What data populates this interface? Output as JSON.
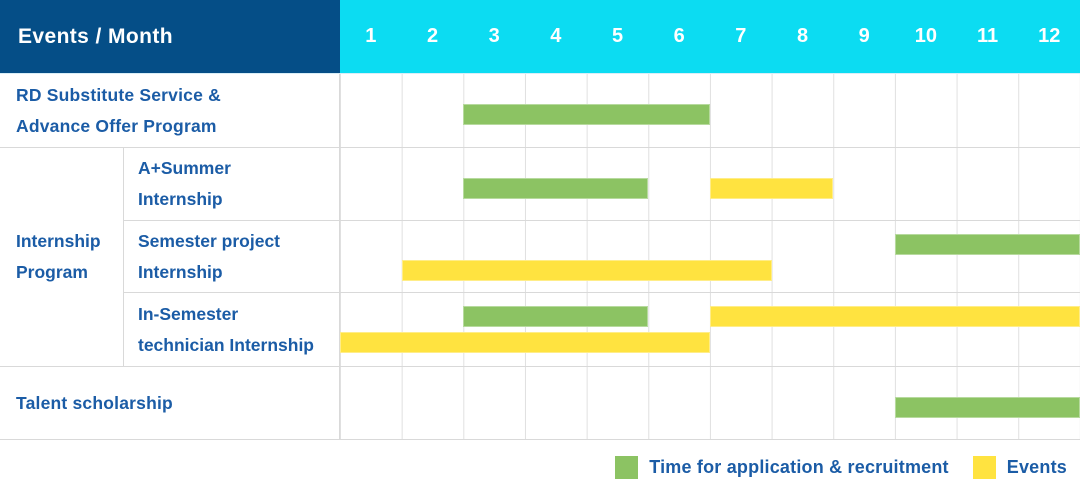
{
  "header": {
    "corner_label": "Events / Month",
    "months": [
      "1",
      "2",
      "3",
      "4",
      "5",
      "6",
      "7",
      "8",
      "9",
      "10",
      "11",
      "12"
    ]
  },
  "labels": {
    "row1_line1": "RD Substitute Service &",
    "row1_line2": "Advance Offer Program",
    "group_line1": "Internship",
    "group_line2": "Program",
    "sub1_line1": "A+Summer",
    "sub1_line2": "Internship",
    "sub2_line1": "Semester project",
    "sub2_line2": "Internship",
    "sub3_line1": "In-Semester",
    "sub3_line2": "technician Internship",
    "row5": "Talent scholarship"
  },
  "legend": {
    "recruitment_label": "Time for application & recruitment",
    "events_label": "Events"
  },
  "colors": {
    "navy": "#054e87",
    "cyan": "#0cdcf2",
    "green": "#8cc363",
    "yellow": "#ffe340",
    "label_blue": "#1b5ca6"
  },
  "chart_data": {
    "type": "bar",
    "subtype": "gantt",
    "title": "Events / Month",
    "x_axis": {
      "label": "Month",
      "ticks": [
        1,
        2,
        3,
        4,
        5,
        6,
        7,
        8,
        9,
        10,
        11,
        12
      ],
      "range": [
        1,
        12
      ]
    },
    "grid": true,
    "legend_position": "bottom-right",
    "series_colors": {
      "Time for application & recruitment": "#8cc363",
      "Events": "#ffe340"
    },
    "rows": [
      {
        "label": "RD Substitute Service & Advance Offer Program",
        "bars": [
          {
            "series": "Time for application & recruitment",
            "start_month": 3,
            "end_month": 6,
            "track": "single"
          }
        ]
      },
      {
        "group": "Internship Program",
        "label": "A+Summer Internship",
        "bars": [
          {
            "series": "Time for application & recruitment",
            "start_month": 3,
            "end_month": 5,
            "track": "single"
          },
          {
            "series": "Events",
            "start_month": 7,
            "end_month": 8,
            "track": "single"
          }
        ]
      },
      {
        "group": "Internship Program",
        "label": "Semester project Internship",
        "bars": [
          {
            "series": "Time for application & recruitment",
            "start_month": 10,
            "end_month": 12,
            "track": "upper"
          },
          {
            "series": "Events",
            "start_month": 2,
            "end_month": 7,
            "track": "lower"
          }
        ]
      },
      {
        "group": "Internship Program",
        "label": "In-Semester technician Internship",
        "bars": [
          {
            "series": "Time for application & recruitment",
            "start_month": 3,
            "end_month": 5,
            "track": "upper"
          },
          {
            "series": "Events",
            "start_month": 7,
            "end_month": 12,
            "track": "upper"
          },
          {
            "series": "Events",
            "start_month": 1,
            "end_month": 6,
            "track": "lower"
          }
        ]
      },
      {
        "label": "Talent scholarship",
        "bars": [
          {
            "series": "Time for application & recruitment",
            "start_month": 10,
            "end_month": 12,
            "track": "single"
          }
        ]
      }
    ]
  }
}
